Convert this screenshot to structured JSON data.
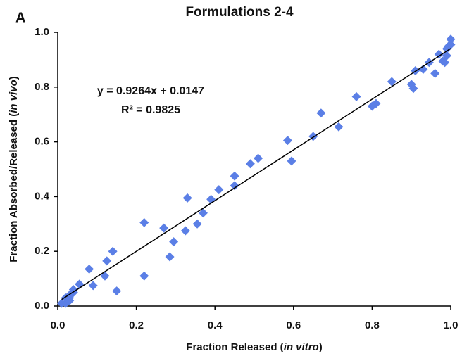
{
  "chart_data": {
    "type": "scatter",
    "panel_label": "A",
    "title": "Formulations 2-4",
    "x_label_parts": [
      "Fraction Released (",
      "in vitro",
      ")"
    ],
    "y_label_parts": [
      "Fraction Absorbed/Released (",
      "in vivo",
      ")"
    ],
    "equation": "y = 0.9264x + 0.0147",
    "r_squared_label": "R² = 0.9825",
    "trendline": {
      "slope": 0.9264,
      "intercept": 0.0147
    },
    "color": "#5b7fe6",
    "x": [
      0.01,
      0.02,
      0.02,
      0.03,
      0.03,
      0.04,
      0.04,
      0.055,
      0.03,
      0.08,
      0.09,
      0.12,
      0.125,
      0.14,
      0.15,
      0.22,
      0.22,
      0.27,
      0.285,
      0.295,
      0.325,
      0.33,
      0.355,
      0.37,
      0.39,
      0.41,
      0.45,
      0.45,
      0.49,
      0.51,
      0.585,
      0.595,
      0.65,
      0.67,
      0.715,
      0.76,
      0.8,
      0.81,
      0.85,
      0.9,
      0.905,
      0.91,
      0.93,
      0.945,
      0.96,
      0.97,
      0.98,
      0.985,
      0.99,
      0.995,
      1.0,
      1.0,
      0.99
    ],
    "values": [
      0.01,
      0.01,
      0.03,
      0.03,
      0.04,
      0.05,
      0.06,
      0.08,
      0.02,
      0.135,
      0.075,
      0.11,
      0.165,
      0.2,
      0.055,
      0.11,
      0.305,
      0.285,
      0.18,
      0.235,
      0.275,
      0.395,
      0.3,
      0.34,
      0.39,
      0.425,
      0.44,
      0.475,
      0.52,
      0.54,
      0.605,
      0.53,
      0.62,
      0.705,
      0.655,
      0.765,
      0.73,
      0.74,
      0.82,
      0.81,
      0.795,
      0.86,
      0.865,
      0.89,
      0.85,
      0.92,
      0.895,
      0.89,
      0.915,
      0.95,
      0.975,
      0.955,
      0.94
    ],
    "xlim": [
      0,
      1
    ],
    "ylim": [
      0,
      1
    ],
    "xticks": [
      {
        "value": 0,
        "label": "0.0"
      },
      0.2,
      0.4,
      0.6,
      0.8,
      {
        "value": 1,
        "label": "1.0"
      }
    ],
    "yticks": [
      {
        "value": 0,
        "label": "0.0"
      },
      0.2,
      0.4,
      0.6,
      0.8,
      {
        "value": 1,
        "label": "1.0"
      }
    ]
  }
}
